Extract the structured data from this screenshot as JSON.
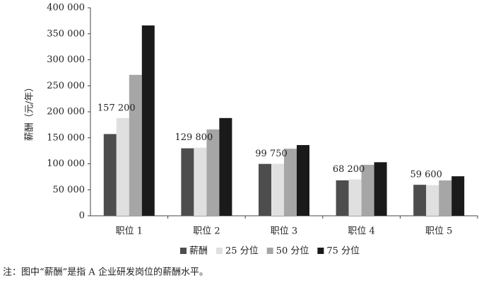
{
  "chart_data": {
    "type": "bar",
    "y_label": "薪酬（元/年）",
    "categories": [
      "职位 1",
      "职位 2",
      "职位 3",
      "职位 4",
      "职位 5"
    ],
    "series": [
      {
        "name": "薪酬",
        "color": "#4d4d4d",
        "values": [
          157200,
          129800,
          99750,
          68200,
          59600
        ],
        "value_labels": [
          "157 200",
          "129 800",
          "99 750",
          "68 200",
          "59 600"
        ]
      },
      {
        "name": "25 分位",
        "color": "#e0e0e0",
        "values": [
          188000,
          131000,
          100000,
          70000,
          59000
        ]
      },
      {
        "name": "50 分位",
        "color": "#a6a6a6",
        "values": [
          271000,
          166000,
          129000,
          98000,
          68000
        ]
      },
      {
        "name": "75 分位",
        "color": "#1a1a1a",
        "values": [
          366000,
          188000,
          136000,
          103000,
          76000
        ]
      }
    ],
    "ylim": [
      0,
      400000
    ],
    "yticks": [
      {
        "value": 0,
        "label": "0"
      },
      {
        "value": 50000,
        "label": "50 000"
      },
      {
        "value": 100000,
        "label": "100 000"
      },
      {
        "value": 150000,
        "label": "150 000"
      },
      {
        "value": 200000,
        "label": "200 000"
      },
      {
        "value": 250000,
        "label": "250 000"
      },
      {
        "value": 300000,
        "label": "300 000"
      },
      {
        "value": 350000,
        "label": "350 000"
      },
      {
        "value": 400000,
        "label": "400 000"
      }
    ],
    "grid": false,
    "legend": "bottom",
    "note": "注：图中“薪酬”是指 A 企业研发岗位的薪酬水平。"
  }
}
